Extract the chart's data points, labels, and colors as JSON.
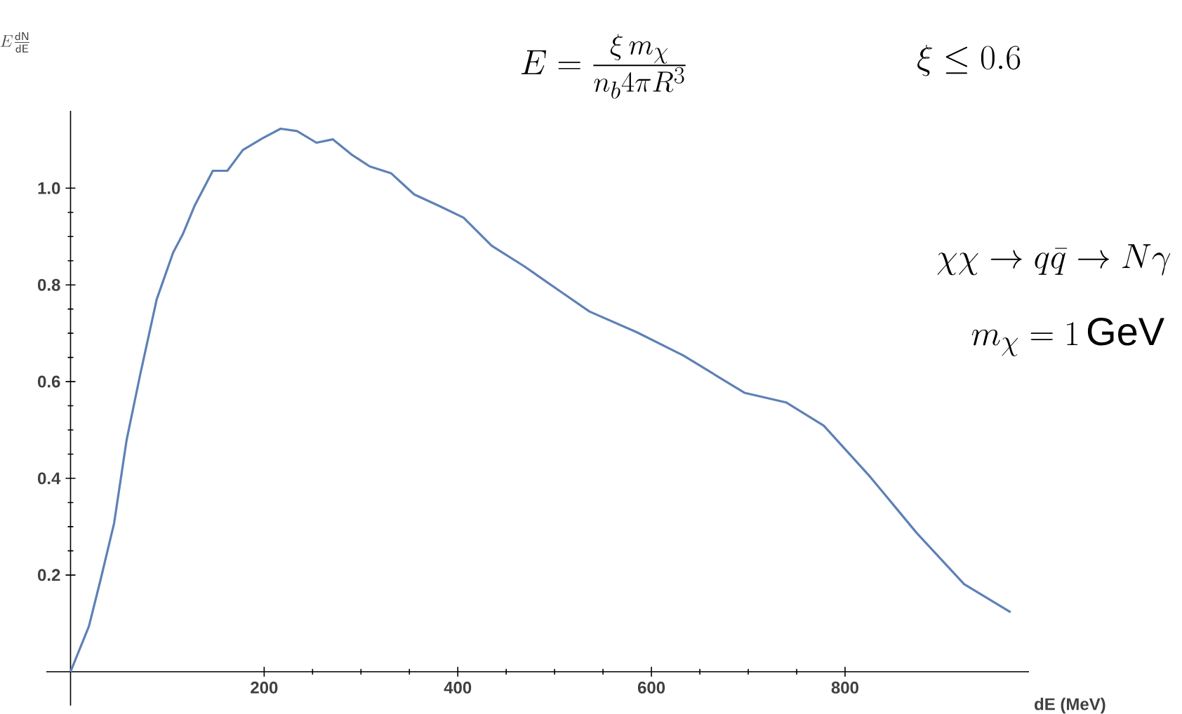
{
  "chart_data": {
    "type": "line",
    "xlabel": "dE (MeV)",
    "ylabel": "E\\frac{\\mathsf{dN}}{\\mathsf{dE}}",
    "annotations": [
      "E = \\frac{\\xi\\, m_\\chi}{n_b 4\\pi R^3}",
      "\\xi \\leq 0.6",
      "\\chi\\chi \\to q\\bar{q} \\to N\\gamma",
      "m_\\chi = 1\\,\\mathrm{GeV}"
    ],
    "x": [
      0,
      19,
      31,
      45,
      58,
      72,
      89,
      106,
      116,
      128,
      147,
      162,
      178,
      198,
      217,
      234,
      254,
      271,
      290,
      309,
      331,
      355,
      381,
      406,
      435,
      469,
      507,
      536,
      585,
      633,
      696,
      739,
      778,
      826,
      874,
      923,
      971
    ],
    "values": [
      0,
      0.094,
      0.19,
      0.307,
      0.48,
      0.615,
      0.77,
      0.867,
      0.905,
      0.963,
      1.036,
      1.036,
      1.079,
      1.103,
      1.123,
      1.118,
      1.094,
      1.101,
      1.07,
      1.045,
      1.031,
      0.987,
      0.963,
      0.939,
      0.881,
      0.838,
      0.785,
      0.745,
      0.702,
      0.654,
      0.577,
      0.557,
      0.509,
      0.403,
      0.287,
      0.181,
      0.123
    ],
    "color": "#5e81b5",
    "xlim": [
      -25,
      990
    ],
    "ylim": [
      -0.07,
      1.16
    ],
    "xticks": [
      200,
      400,
      600,
      800
    ],
    "yticks": [
      0.2,
      0.4,
      0.6,
      0.8,
      {
        "value": 1.0,
        "label": "1.0"
      }
    ]
  }
}
